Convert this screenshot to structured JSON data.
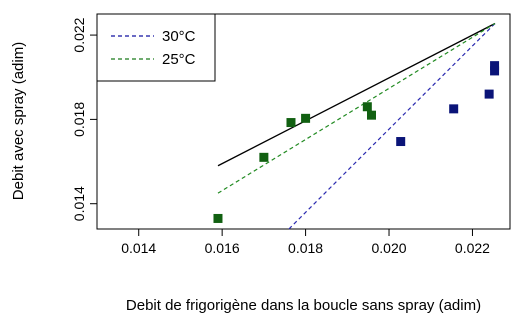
{
  "chart_data": {
    "type": "scatter",
    "title": "",
    "xlabel": "Debit  de frigorigène dans la boucle sans spray (adim)",
    "ylabel": "Debit avec spray (adim)",
    "xlim": [
      0.013,
      0.0229
    ],
    "ylim": [
      0.0128,
      0.023
    ],
    "xticks": [
      "0.014",
      "0.016",
      "0.018",
      "0.020",
      "0.022"
    ],
    "yticks": [
      "0.014",
      "0.018",
      "0.022"
    ],
    "grid": false,
    "legend": {
      "position": "top-left",
      "entries": [
        {
          "label": "30°C",
          "color": "#1010a0",
          "linestyle": "dashed"
        },
        {
          "label": "25°C",
          "color": "#1a7a1a",
          "linestyle": "dashed"
        }
      ]
    },
    "series": [
      {
        "name": "30°C",
        "color": "#0a1478",
        "marker": "square",
        "points": [
          {
            "x": 0.02028,
            "y": 0.01695
          },
          {
            "x": 0.02155,
            "y": 0.0185
          },
          {
            "x": 0.0224,
            "y": 0.0192
          },
          {
            "x": 0.02253,
            "y": 0.0203
          },
          {
            "x": 0.02253,
            "y": 0.02055
          }
        ],
        "fit": {
          "color": "#2a2ab0",
          "dashed": true,
          "points": [
            {
              "x": 0.0176,
              "y": 0.0128
            },
            {
              "x": 0.02254,
              "y": 0.02255
            }
          ]
        }
      },
      {
        "name": "25°C",
        "color": "#116011",
        "marker": "square",
        "points": [
          {
            "x": 0.0159,
            "y": 0.0133
          },
          {
            "x": 0.017,
            "y": 0.0162
          },
          {
            "x": 0.01765,
            "y": 0.01785
          },
          {
            "x": 0.018,
            "y": 0.01805
          },
          {
            "x": 0.01948,
            "y": 0.0186
          },
          {
            "x": 0.01958,
            "y": 0.0182
          }
        ],
        "fit": {
          "color": "#228b22",
          "dashed": true,
          "points": [
            {
              "x": 0.0159,
              "y": 0.0145
            },
            {
              "x": 0.02254,
              "y": 0.02255
            }
          ]
        }
      }
    ],
    "reference_line": {
      "color": "#000000",
      "dashed": false,
      "points": [
        {
          "x": 0.0159,
          "y": 0.0158
        },
        {
          "x": 0.02254,
          "y": 0.02255
        }
      ]
    }
  }
}
